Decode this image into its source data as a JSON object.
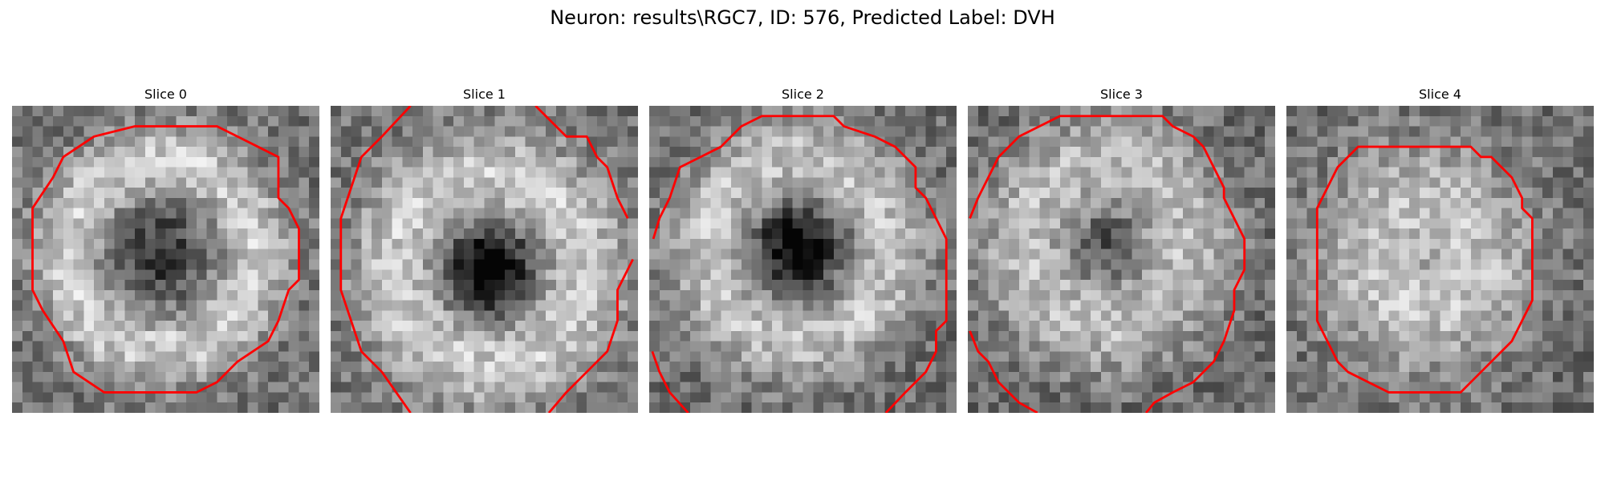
{
  "figure": {
    "title": "Neuron: results\\RGC7, ID: 576, Predicted Label: DVH"
  },
  "panels": [
    {
      "title": "Slice 0",
      "ring": "full"
    },
    {
      "title": "Slice 1",
      "ring": "corners"
    },
    {
      "title": "Slice 2",
      "ring": "full-wide"
    },
    {
      "title": "Slice 3",
      "ring": "cut-off"
    },
    {
      "title": "Slice 4",
      "ring": "full-small"
    }
  ],
  "colors": {
    "contour": "#ff0000"
  }
}
